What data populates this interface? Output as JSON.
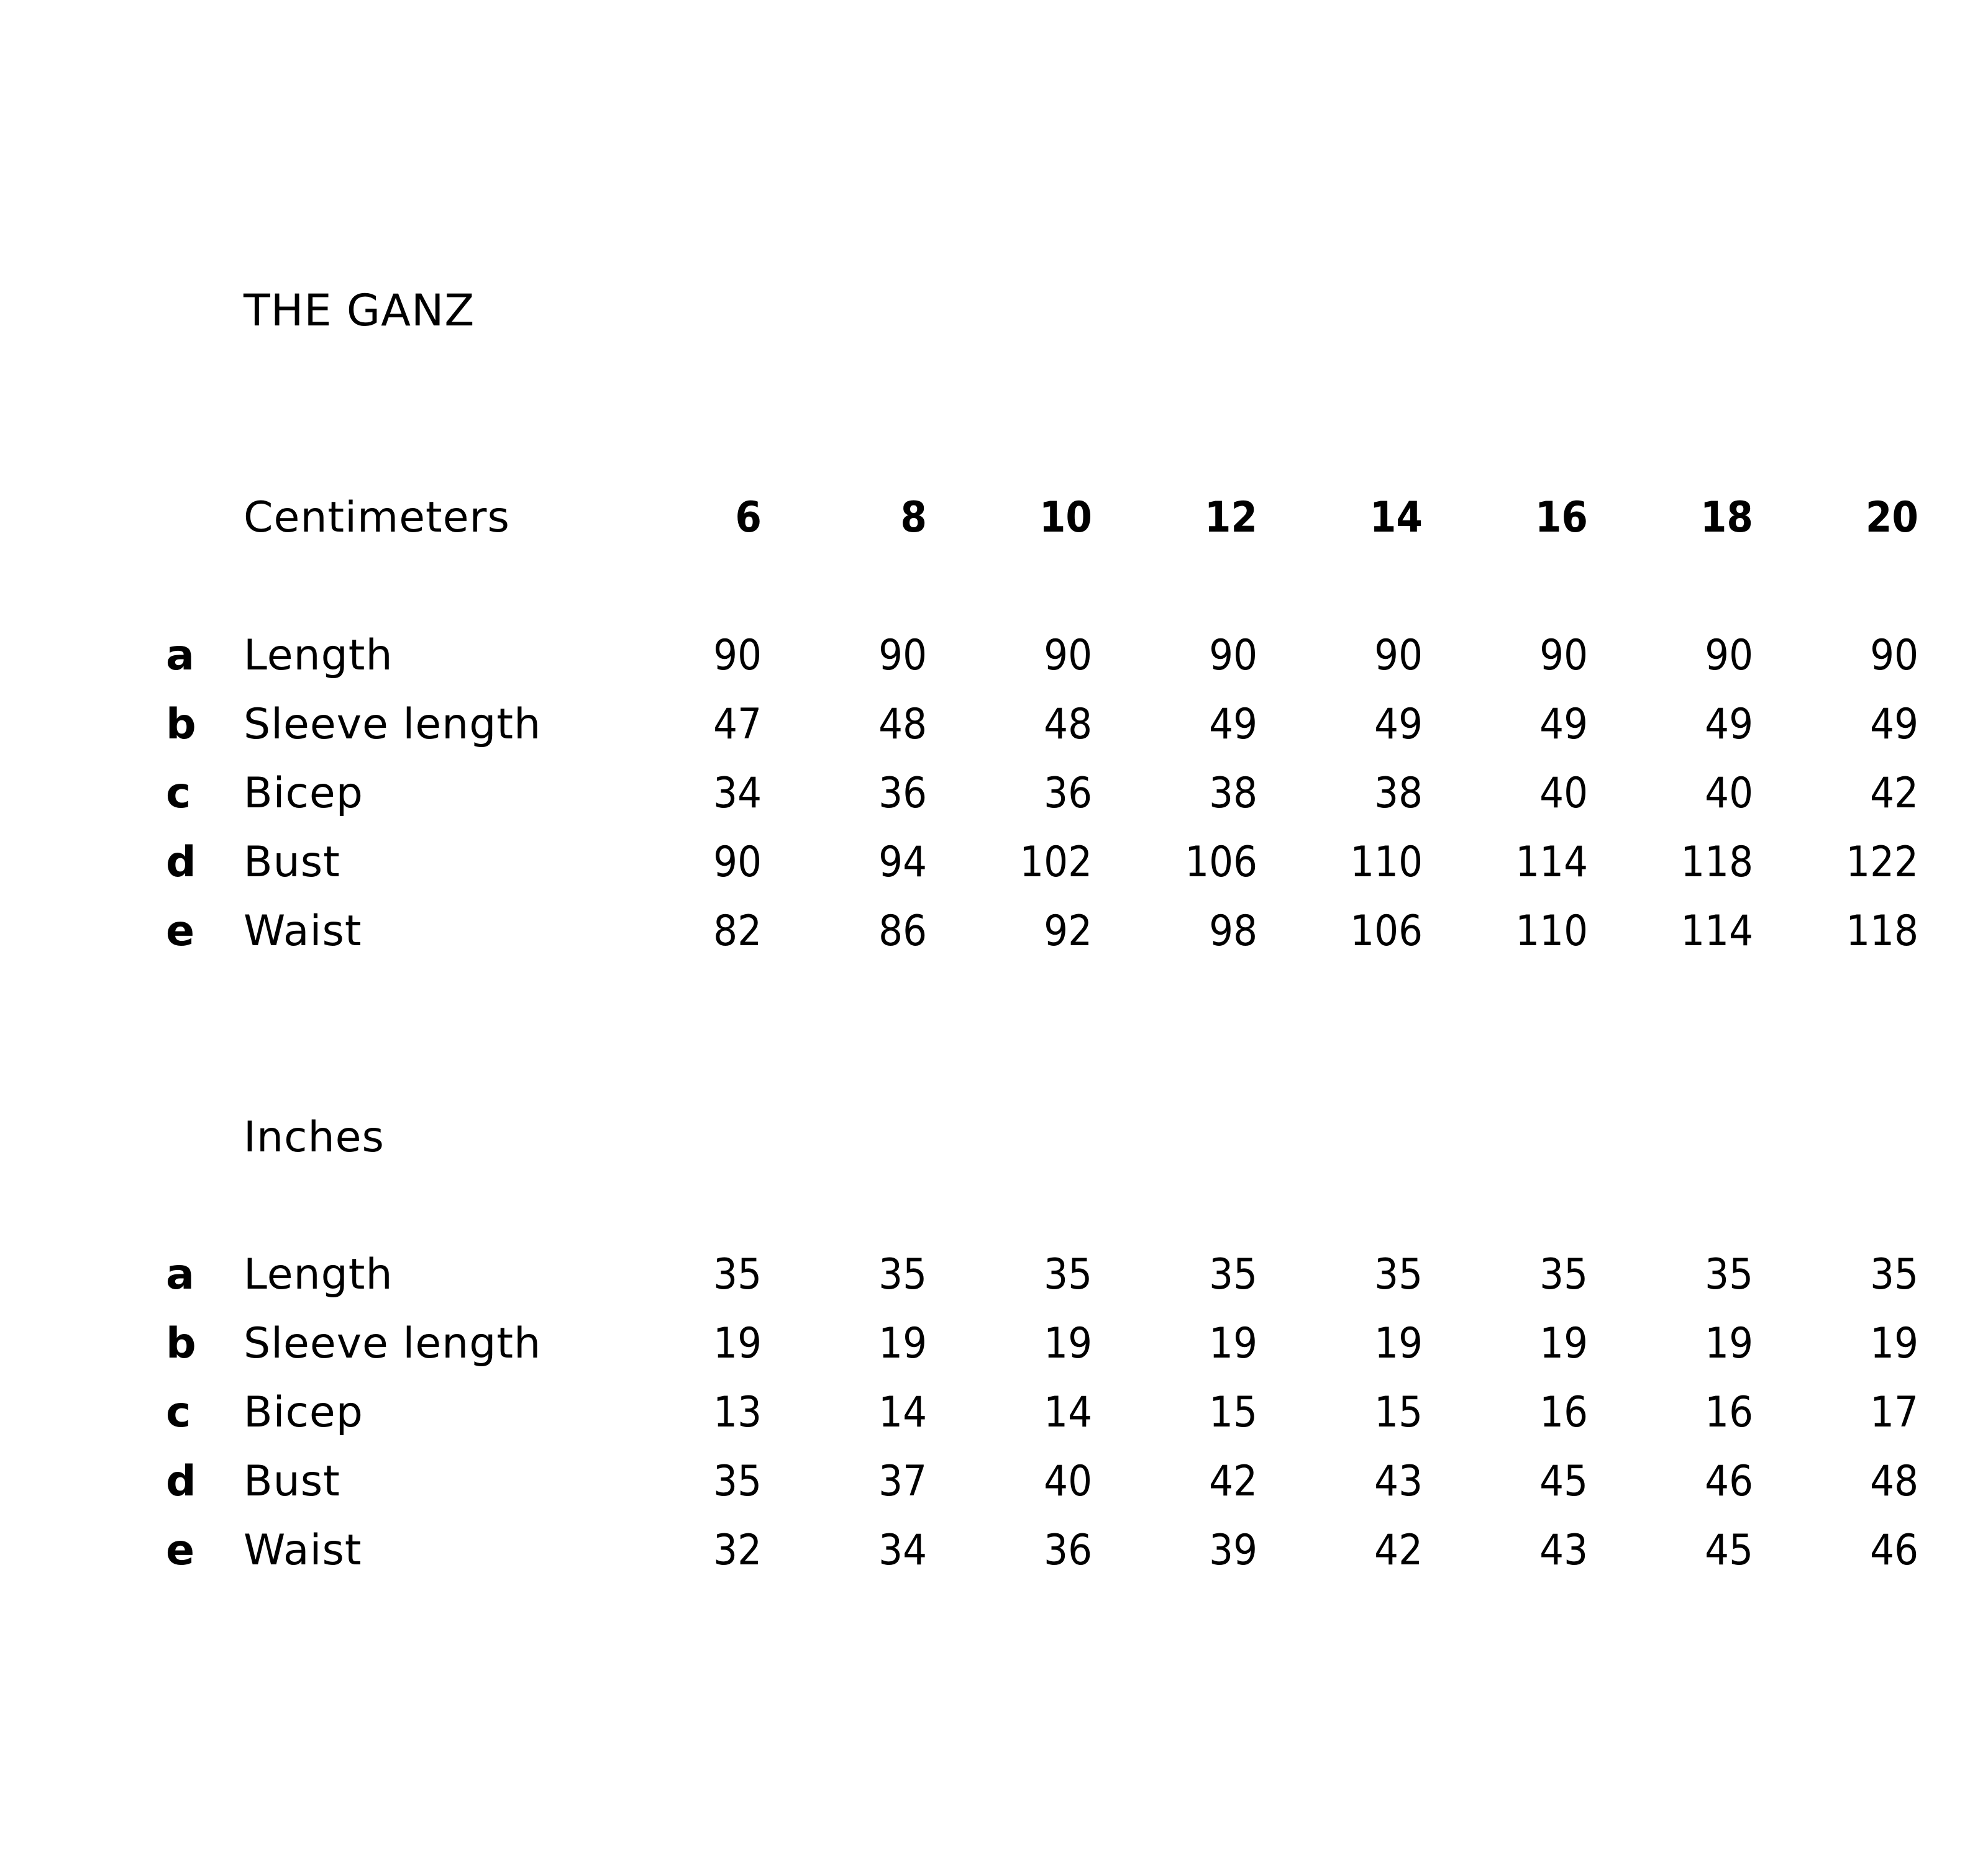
{
  "title": "THE GANZ",
  "sizes": [
    "6",
    "8",
    "10",
    "12",
    "14",
    "16",
    "18",
    "20"
  ],
  "tables": [
    {
      "unit": "Centimeters",
      "rows": [
        {
          "letter": "a",
          "label": "Length",
          "values": [
            "90",
            "90",
            "90",
            "90",
            "90",
            "90",
            "90",
            "90"
          ]
        },
        {
          "letter": "b",
          "label": "Sleeve length",
          "values": [
            "47",
            "48",
            "48",
            "49",
            "49",
            "49",
            "49",
            "49"
          ]
        },
        {
          "letter": "c",
          "label": "Bicep",
          "values": [
            "34",
            "36",
            "36",
            "38",
            "38",
            "40",
            "40",
            "42"
          ]
        },
        {
          "letter": "d",
          "label": "Bust",
          "values": [
            "90",
            "94",
            "102",
            "106",
            "110",
            "114",
            "118",
            "122"
          ]
        },
        {
          "letter": "e",
          "label": "Waist",
          "values": [
            "82",
            "86",
            "92",
            "98",
            "106",
            "110",
            "114",
            "118"
          ]
        }
      ]
    },
    {
      "unit": "Inches",
      "rows": [
        {
          "letter": "a",
          "label": "Length",
          "values": [
            "35",
            "35",
            "35",
            "35",
            "35",
            "35",
            "35",
            "35"
          ]
        },
        {
          "letter": "b",
          "label": "Sleeve length",
          "values": [
            "19",
            "19",
            "19",
            "19",
            "19",
            "19",
            "19",
            "19"
          ]
        },
        {
          "letter": "c",
          "label": "Bicep",
          "values": [
            "13",
            "14",
            "14",
            "15",
            "15",
            "16",
            "16",
            "17"
          ]
        },
        {
          "letter": "d",
          "label": "Bust",
          "values": [
            "35",
            "37",
            "40",
            "42",
            "43",
            "45",
            "46",
            "48"
          ]
        },
        {
          "letter": "e",
          "label": "Waist",
          "values": [
            "32",
            "34",
            "36",
            "39",
            "42",
            "43",
            "45",
            "46"
          ]
        }
      ]
    }
  ]
}
